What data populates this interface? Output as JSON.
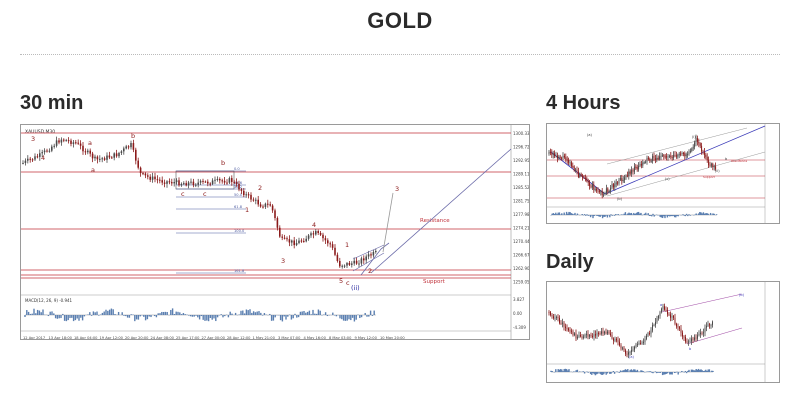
{
  "page": {
    "title": "GOLD"
  },
  "sections": {
    "main": "30 min",
    "h4": "4 Hours",
    "daily": "Daily"
  },
  "colors": {
    "bull_candle": "#4a4a4a",
    "bear_candle": "#8b1a1a",
    "wave_label": "#8b1a1a",
    "level_line": "#c0313a",
    "projection": "#6a6aa8",
    "oscillator_bar": "#5b7fb0"
  },
  "main_chart": {
    "symbol": "XAUUSD,M30",
    "indicator": "MACD(12, 26, 9) -0.941",
    "wave_labels": [
      "3",
      "4",
      "a",
      "b",
      "b",
      "c",
      "c",
      "a",
      "2",
      "1",
      "3",
      "4",
      "1",
      "2",
      "3",
      "5",
      "c",
      "(ii)"
    ],
    "resistance_label": "Resistance",
    "support_label": "Support",
    "fib_labels": [
      "0.0",
      "23.6",
      "38.2",
      "50.0",
      "61.8",
      "100.0",
      "161.8"
    ],
    "price_labels": [
      "1300.33",
      "1296.72",
      "1292.95",
      "1289.11",
      "1285.52",
      "1281.75",
      "1277.98",
      "1274.21",
      "1270.44",
      "1266.67",
      "1262.90",
      "1259.05"
    ],
    "osc_labels": [
      "3.827",
      "0.00",
      "-4.309"
    ],
    "dates": [
      "12 Apr 2017",
      "13 Apr 18:00",
      "18 Apr 04:00",
      "19 Apr 12:00",
      "20 Apr 20:00",
      "24 Apr 08:00",
      "25 Apr 17:00",
      "27 Apr 00:00",
      "28 Apr 12:00",
      "1 May 21:00",
      "3 May 07:00",
      "4 May 16:00",
      "8 May 03:00",
      "9 May 12:00",
      "10 May 20:00"
    ]
  },
  "h4_chart": {
    "wave_labels": [
      "(a)",
      "(b)",
      "(c)",
      "(i)",
      "(ii)",
      "b"
    ],
    "resistance_label": "Resistance",
    "support_label": "Support"
  },
  "daily_chart": {
    "wave_labels": [
      "a",
      "(a)",
      "b",
      "(b)"
    ]
  }
}
